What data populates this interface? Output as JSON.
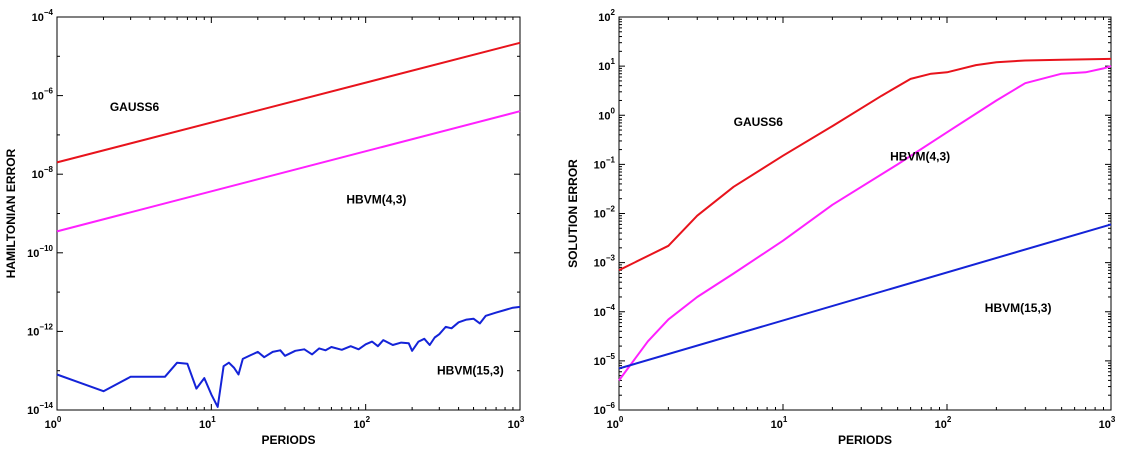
{
  "chart_data": [
    {
      "type": "line",
      "xscale": "log",
      "yscale": "log",
      "xlim": [
        1,
        1000
      ],
      "ylim": [
        1e-14,
        0.0001
      ],
      "xlabel": "PERIODS",
      "ylabel": "HAMILTONIAN ERROR",
      "grid": false,
      "xticks": [
        {
          "v": 1,
          "base": "10",
          "exp": "0"
        },
        {
          "v": 10,
          "base": "10",
          "exp": "1"
        },
        {
          "v": 100,
          "base": "10",
          "exp": "2"
        },
        {
          "v": 1000,
          "base": "10",
          "exp": "3"
        }
      ],
      "yticks": [
        {
          "v": 1e-14,
          "base": "10",
          "exp": "−14"
        },
        {
          "v": 1e-12,
          "base": "10",
          "exp": "−12"
        },
        {
          "v": 1e-10,
          "base": "10",
          "exp": "−10"
        },
        {
          "v": 1e-08,
          "base": "10",
          "exp": "−8"
        },
        {
          "v": 1e-06,
          "base": "10",
          "exp": "−6"
        },
        {
          "v": 0.0001,
          "base": "10",
          "exp": "−4"
        }
      ],
      "series": [
        {
          "color": "#e8131c",
          "x": [
            1,
            1000
          ],
          "y": [
            2e-08,
            2.2e-05
          ]
        },
        {
          "color": "#ff20ff",
          "x": [
            1,
            1000
          ],
          "y": [
            3.5e-10,
            4e-07
          ]
        },
        {
          "color": "#1423d8",
          "x": [
            1,
            2,
            3,
            4,
            5,
            6,
            7,
            8,
            9,
            10,
            11,
            12,
            13,
            14,
            15,
            16,
            18,
            20,
            22,
            25,
            28,
            30,
            35,
            40,
            45,
            50,
            55,
            60,
            70,
            80,
            90,
            100,
            110,
            120,
            130,
            150,
            170,
            190,
            200,
            220,
            240,
            260,
            280,
            300,
            330,
            360,
            400,
            450,
            500,
            550,
            600,
            700,
            800,
            900,
            1000
          ],
          "y": [
            8e-14,
            3e-14,
            7e-14,
            7e-14,
            7e-14,
            1.6e-13,
            1.5e-13,
            3.5e-14,
            6.5e-14,
            2.5e-14,
            1.2e-14,
            1.3e-13,
            1.6e-13,
            1.2e-13,
            8e-14,
            2e-13,
            2.5e-13,
            3e-13,
            2.2e-13,
            3e-13,
            3.3e-13,
            2.4e-13,
            3.2e-13,
            3.5e-13,
            2.6e-13,
            3.7e-13,
            3.3e-13,
            4e-13,
            3.4e-13,
            4.2e-13,
            3.5e-13,
            4.7e-13,
            5.5e-13,
            4.2e-13,
            6e-13,
            4.5e-13,
            5.2e-13,
            5e-13,
            3.2e-13,
            5.5e-13,
            6.5e-13,
            4.5e-13,
            7e-13,
            8.5e-13,
            1.3e-12,
            1.2e-12,
            1.7e-12,
            2e-12,
            2.1e-12,
            1.6e-12,
            2.5e-12,
            3e-12,
            3.5e-12,
            4e-12,
            4.2e-12
          ]
        }
      ],
      "annotations": [
        {
          "text": "GAUSS6",
          "x": 2.2,
          "y": 4e-07
        },
        {
          "text": "HBVM(4,3)",
          "x": 75,
          "y": 1.8e-09
        },
        {
          "text": "HBVM(15,3)",
          "x": 290,
          "y": 8e-14
        }
      ]
    },
    {
      "type": "line",
      "xscale": "log",
      "yscale": "log",
      "xlim": [
        1,
        1000
      ],
      "ylim": [
        1e-06,
        100
      ],
      "xlabel": "PERIODS",
      "ylabel": "SOLUTION ERROR",
      "grid": false,
      "xticks": [
        {
          "v": 1,
          "base": "10",
          "exp": "0"
        },
        {
          "v": 10,
          "base": "10",
          "exp": "1"
        },
        {
          "v": 100,
          "base": "10",
          "exp": "2"
        },
        {
          "v": 1000,
          "base": "10",
          "exp": "3"
        }
      ],
      "yticks": [
        {
          "v": 1e-06,
          "base": "10",
          "exp": "−6"
        },
        {
          "v": 1e-05,
          "base": "10",
          "exp": "−5"
        },
        {
          "v": 0.0001,
          "base": "10",
          "exp": "−4"
        },
        {
          "v": 0.001,
          "base": "10",
          "exp": "−3"
        },
        {
          "v": 0.01,
          "base": "10",
          "exp": "−2"
        },
        {
          "v": 0.1,
          "base": "10",
          "exp": "−1"
        },
        {
          "v": 1,
          "base": "10",
          "exp": "0"
        },
        {
          "v": 10,
          "base": "10",
          "exp": "1"
        },
        {
          "v": 100,
          "base": "10",
          "exp": "2"
        }
      ],
      "series": [
        {
          "color": "#e8131c",
          "x": [
            1,
            2,
            3,
            5,
            10,
            20,
            40,
            60,
            80,
            100,
            150,
            200,
            300,
            500,
            1000
          ],
          "y": [
            0.0007,
            0.0022,
            0.009,
            0.035,
            0.15,
            0.6,
            2.5,
            5.5,
            7,
            7.5,
            10.5,
            12,
            13,
            13.5,
            14
          ]
        },
        {
          "color": "#ff20ff",
          "x": [
            1,
            1.5,
            2,
            3,
            5,
            10,
            20,
            50,
            100,
            200,
            300,
            500,
            700,
            900,
            1000
          ],
          "y": [
            4e-06,
            2.5e-05,
            7e-05,
            0.0002,
            0.0006,
            0.0028,
            0.015,
            0.1,
            0.45,
            2,
            4.5,
            7,
            7.5,
            9,
            10
          ]
        },
        {
          "color": "#1423d8",
          "x": [
            1,
            1000
          ],
          "y": [
            7e-06,
            0.006
          ]
        }
      ],
      "annotations": [
        {
          "text": "GAUSS6",
          "x": 5,
          "y": 0.6
        },
        {
          "text": "HBVM(4,3)",
          "x": 45,
          "y": 0.12
        },
        {
          "text": "HBVM(15,3)",
          "x": 170,
          "y": 0.0001
        }
      ]
    }
  ]
}
